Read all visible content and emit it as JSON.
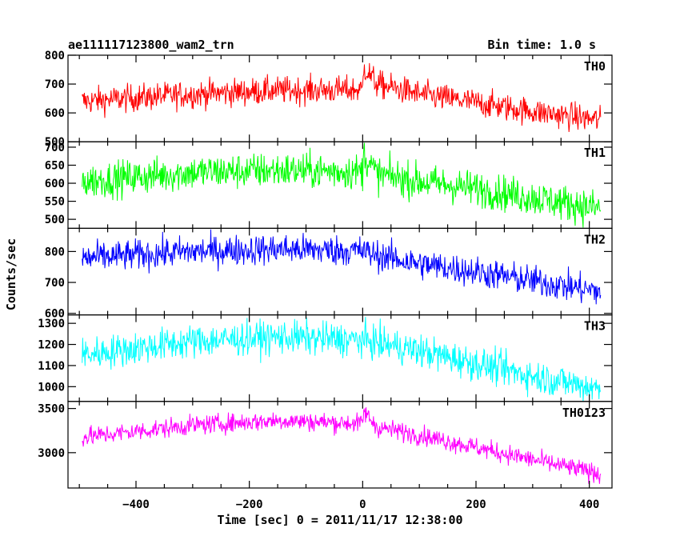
{
  "chart_data": {
    "type": "line",
    "title": "ae111117123800_wam2_trn",
    "bin_label": "Bin time: 1.0 s",
    "xlabel": "Time [sec] 0 = 2011/11/17 12:38:00",
    "ylabel": "Counts/sec",
    "xlim": [
      -520,
      440
    ],
    "x_ticks": [
      -400,
      -200,
      0,
      200,
      400
    ],
    "bin_time_s": 1.0,
    "panels": [
      {
        "name": "TH0",
        "color": "#ff0000",
        "ylim": [
          500,
          800
        ],
        "y_ticks": [
          500,
          600,
          700,
          800
        ],
        "noise": 24,
        "trend": [
          [
            -495,
            640
          ],
          [
            -300,
            665
          ],
          [
            -150,
            678
          ],
          [
            0,
            680
          ],
          [
            2,
            760
          ],
          [
            25,
            700
          ],
          [
            100,
            665
          ],
          [
            200,
            635
          ],
          [
            300,
            605
          ],
          [
            420,
            575
          ]
        ]
      },
      {
        "name": "TH1",
        "color": "#00ff00",
        "ylim": [
          475,
          715
        ],
        "y_ticks": [
          500,
          550,
          600,
          650,
          700
        ],
        "noise": 25,
        "trend": [
          [
            -495,
            605
          ],
          [
            -300,
            630
          ],
          [
            -150,
            636
          ],
          [
            0,
            632
          ],
          [
            2,
            680
          ],
          [
            25,
            625
          ],
          [
            100,
            605
          ],
          [
            200,
            585
          ],
          [
            300,
            560
          ],
          [
            420,
            530
          ]
        ]
      },
      {
        "name": "TH2",
        "color": "#0000ff",
        "ylim": [
          595,
          875
        ],
        "y_ticks": [
          600,
          700,
          800
        ],
        "noise": 25,
        "trend": [
          [
            -495,
            778
          ],
          [
            -300,
            800
          ],
          [
            -150,
            808
          ],
          [
            0,
            802
          ],
          [
            20,
            790
          ],
          [
            100,
            760
          ],
          [
            200,
            735
          ],
          [
            300,
            705
          ],
          [
            420,
            670
          ]
        ]
      },
      {
        "name": "TH3",
        "color": "#00ffff",
        "ylim": [
          930,
          1340
        ],
        "y_ticks": [
          1000,
          1100,
          1200,
          1300
        ],
        "noise": 40,
        "trend": [
          [
            -495,
            1150
          ],
          [
            -300,
            1215
          ],
          [
            -150,
            1235
          ],
          [
            0,
            1220
          ],
          [
            100,
            1170
          ],
          [
            200,
            1110
          ],
          [
            300,
            1050
          ],
          [
            420,
            990
          ]
        ]
      },
      {
        "name": "TH0123",
        "color": "#ff00ff",
        "ylim": [
          2600,
          3580
        ],
        "y_ticks": [
          3000,
          3500
        ],
        "noise": 55,
        "trend": [
          [
            -495,
            3175
          ],
          [
            -300,
            3310
          ],
          [
            -150,
            3365
          ],
          [
            0,
            3330
          ],
          [
            2,
            3470
          ],
          [
            25,
            3290
          ],
          [
            100,
            3200
          ],
          [
            200,
            3060
          ],
          [
            300,
            2920
          ],
          [
            420,
            2760
          ]
        ]
      }
    ]
  }
}
